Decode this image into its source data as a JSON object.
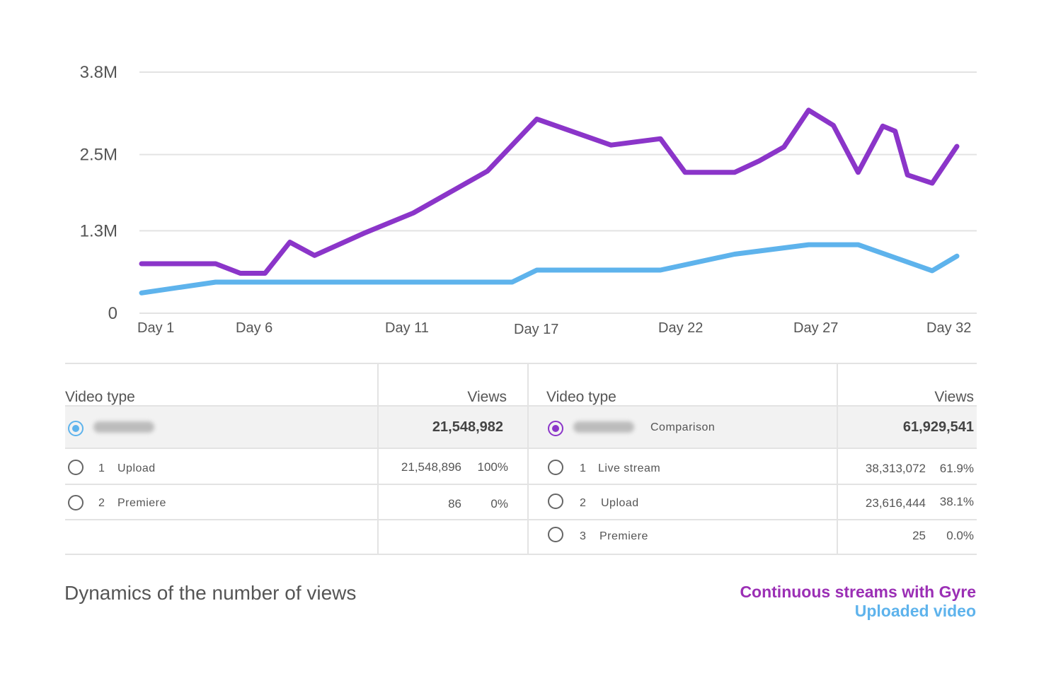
{
  "chart_data": {
    "type": "line",
    "title": "Dynamics of the number of views",
    "y_ticks": [
      "3.8M",
      "2.5M",
      "1.3M",
      "0"
    ],
    "x_ticks": [
      "Day 1",
      "Day 6",
      "Day 11",
      "Day 17",
      "Day 22",
      "Day 27",
      "Day 32"
    ],
    "grid": true,
    "legend_position": "bottom-right",
    "series": [
      {
        "name": "Continuous streams with Gyre",
        "color": "#8b35c9",
        "values": [
          {
            "x": "Day 1",
            "y": 0.78
          },
          {
            "x": "Day 4",
            "y": 0.78
          },
          {
            "x": "Day 5",
            "y": 0.63
          },
          {
            "x": "Day 6",
            "y": 0.63
          },
          {
            "x": "Day 7",
            "y": 1.12
          },
          {
            "x": "Day 8",
            "y": 0.91
          },
          {
            "x": "Day 10",
            "y": 1.26
          },
          {
            "x": "Day 12",
            "y": 1.58
          },
          {
            "x": "Day 15",
            "y": 2.24
          },
          {
            "x": "Day 17",
            "y": 3.06
          },
          {
            "x": "Day 20",
            "y": 2.65
          },
          {
            "x": "Day 22",
            "y": 2.75
          },
          {
            "x": "Day 23",
            "y": 2.22
          },
          {
            "x": "Day 25",
            "y": 2.22
          },
          {
            "x": "Day 26",
            "y": 2.4
          },
          {
            "x": "Day 27",
            "y": 2.62
          },
          {
            "x": "Day 28",
            "y": 3.2
          },
          {
            "x": "Day 29",
            "y": 2.96
          },
          {
            "x": "Day 30",
            "y": 2.22
          },
          {
            "x": "Day 31",
            "y": 2.95
          },
          {
            "x": "Day 31.5",
            "y": 2.87
          },
          {
            "x": "Day 32",
            "y": 2.18
          },
          {
            "x": "Day 33",
            "y": 2.05
          },
          {
            "x": "Day 34",
            "y": 2.63
          }
        ]
      },
      {
        "name": "Uploaded video",
        "color": "#5eb3ec",
        "values": [
          {
            "x": "Day 1",
            "y": 0.32
          },
          {
            "x": "Day 4",
            "y": 0.49
          },
          {
            "x": "Day 16",
            "y": 0.49
          },
          {
            "x": "Day 17",
            "y": 0.68
          },
          {
            "x": "Day 22",
            "y": 0.68
          },
          {
            "x": "Day 25",
            "y": 0.93
          },
          {
            "x": "Day 28",
            "y": 1.08
          },
          {
            "x": "Day 30",
            "y": 1.08
          },
          {
            "x": "Day 33",
            "y": 0.67
          },
          {
            "x": "Day 34",
            "y": 0.9
          }
        ]
      }
    ]
  },
  "tables": {
    "left": {
      "col_type": "Video type",
      "col_views": "Views",
      "total": "21,548,982",
      "selected_color": "#5eb3ec",
      "rows": [
        {
          "rank": "1",
          "label": "Upload",
          "views": "21,548,896",
          "pct": "100%"
        },
        {
          "rank": "2",
          "label": "Premiere",
          "views": "86",
          "pct": "0%"
        }
      ]
    },
    "right": {
      "col_type": "Video type",
      "col_views": "Views",
      "comparison_label": "Comparison",
      "total": "61,929,541",
      "selected_color": "#8b35c9",
      "rows": [
        {
          "rank": "1",
          "label": "Live stream",
          "views": "38,313,072",
          "pct": "61.9%"
        },
        {
          "rank": "2",
          "label": "Upload",
          "views": "23,616,444",
          "pct": "38.1%"
        },
        {
          "rank": "3",
          "label": "Premiere",
          "views": "25",
          "pct": "0.0%"
        }
      ]
    }
  },
  "footer": {
    "title": "Dynamics of the number of views",
    "legend_1": "Continuous streams with Gyre",
    "legend_2": "Uploaded video"
  },
  "colors": {
    "purple": "#8b35c9",
    "blue": "#5eb3ec",
    "legend_purple": "#9b2fb5"
  }
}
